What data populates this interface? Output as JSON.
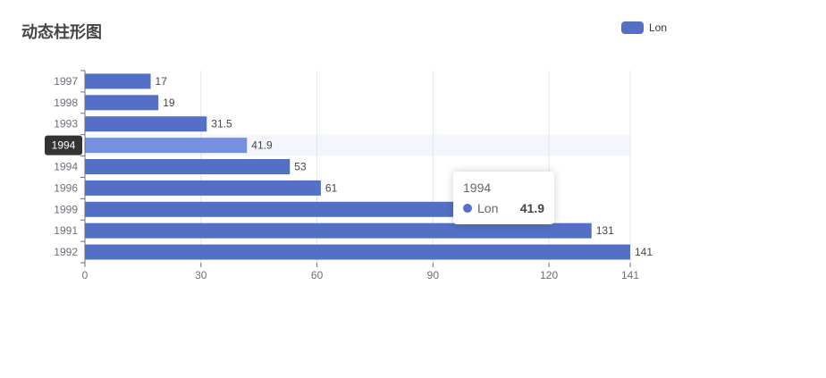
{
  "title": "动态柱形图",
  "legend": {
    "label": "Lon"
  },
  "colors": {
    "bar": "#5470c6",
    "bar_highlight": "#7490df",
    "axis": "#6e7079",
    "grid": "#e0e6f1",
    "highlight_band": "#f4f6fb",
    "label": "#464646",
    "pointer_bg": "#333333"
  },
  "tooltip": {
    "title": "1994",
    "series": "Lon",
    "value": "41.9"
  },
  "chart_data": {
    "type": "bar",
    "orientation": "horizontal",
    "categories": [
      "1997",
      "1998",
      "1993",
      "1994",
      "1994",
      "1996",
      "1999",
      "1991",
      "1992"
    ],
    "series": [
      {
        "name": "Lon",
        "values": [
          17,
          19,
          31.5,
          41.9,
          53,
          61,
          98,
          131,
          141
        ]
      }
    ],
    "value_labels": [
      "17",
      "19",
      "31.5",
      "41.9",
      "53",
      "61",
      "",
      "131",
      "141"
    ],
    "xlim": [
      0,
      141
    ],
    "xticks": [
      "0",
      "30",
      "60",
      "90",
      "120",
      "141"
    ],
    "grid": true,
    "legend_position": "top-right",
    "highlighted_index": 3
  }
}
